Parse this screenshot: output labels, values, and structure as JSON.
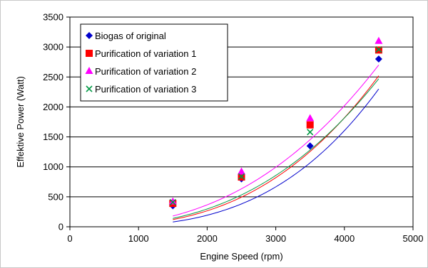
{
  "chart_data": {
    "type": "scatter",
    "title": "",
    "xlabel": "Engine Speed (rpm)",
    "ylabel": "Effektive Power (Watt)",
    "xlim": [
      0,
      5000
    ],
    "ylim": [
      0,
      3500
    ],
    "xticks": [
      0,
      1000,
      2000,
      3000,
      4000,
      5000
    ],
    "yticks": [
      0,
      500,
      1000,
      1500,
      2000,
      2500,
      3000,
      3500
    ],
    "grid": "horizontal",
    "legend_position": "top-left",
    "series": [
      {
        "name": "Biogas of original",
        "marker": "diamond",
        "color": "#0000cc",
        "x": [
          1500,
          2500,
          3500,
          4500
        ],
        "y": [
          350,
          800,
          1350,
          2800
        ],
        "trend": {
          "type": "power",
          "from": 1500,
          "to": 4500,
          "start": 80,
          "end": 2300
        }
      },
      {
        "name": "Purification of variation 1",
        "marker": "square",
        "color": "#ff0000",
        "x": [
          1500,
          2500,
          3500,
          4500
        ],
        "y": [
          390,
          830,
          1700,
          2950
        ],
        "trend": {
          "type": "power",
          "from": 1500,
          "to": 4500,
          "start": 120,
          "end": 2520
        }
      },
      {
        "name": "Purification of variation 2",
        "marker": "triangle",
        "color": "#ff00ff",
        "x": [
          1500,
          2500,
          3500,
          4500
        ],
        "y": [
          420,
          920,
          1810,
          3100
        ],
        "trend": {
          "type": "power",
          "from": 1500,
          "to": 4500,
          "start": 180,
          "end": 2700
        }
      },
      {
        "name": "Purification of variation 3",
        "marker": "x",
        "color": "#009944",
        "x": [
          1500,
          2500,
          3500,
          4500
        ],
        "y": [
          410,
          840,
          1580,
          2960
        ],
        "trend": {
          "type": "power",
          "from": 1500,
          "to": 4500,
          "start": 140,
          "end": 2470
        }
      }
    ]
  }
}
